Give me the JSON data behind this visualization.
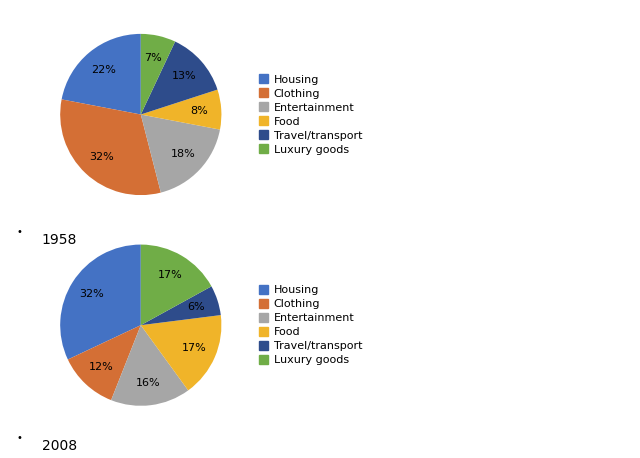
{
  "chart1": {
    "year": "1958",
    "labels": [
      "Housing",
      "Clothing",
      "Entertainment",
      "Food",
      "Travel/transport",
      "Luxury goods"
    ],
    "values": [
      22,
      32,
      18,
      8,
      13,
      7
    ],
    "pie_colors": [
      "#4472C4",
      "#D46F35",
      "#A6A6A6",
      "#F0B429",
      "#2E4C8B",
      "#70AD47"
    ]
  },
  "chart2": {
    "year": "2008",
    "labels": [
      "Housing",
      "Clothing",
      "Entertainment",
      "Food",
      "Travel/transport",
      "Luxury goods"
    ],
    "values": [
      32,
      12,
      16,
      17,
      6,
      17
    ],
    "pie_colors": [
      "#4472C4",
      "#D46F35",
      "#A6A6A6",
      "#F0B429",
      "#2E4C8B",
      "#70AD47"
    ]
  },
  "legend_colors": [
    "#4472C4",
    "#D46F35",
    "#A6A6A6",
    "#F0B429",
    "#2E4C8B",
    "#70AD47"
  ],
  "legend_labels": [
    "Housing",
    "Clothing",
    "Entertainment",
    "Food",
    "Travel/transport",
    "Luxury goods"
  ],
  "label_fontsize": 8,
  "legend_fontsize": 8,
  "year_fontsize": 10
}
